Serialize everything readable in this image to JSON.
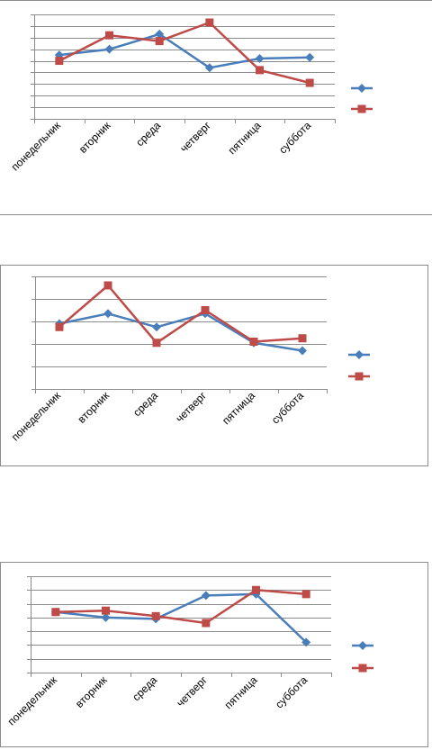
{
  "chart_data": [
    {
      "type": "line",
      "categories": [
        "понедельник",
        "вторник",
        "среда",
        "четверг",
        "пятница",
        "суббота"
      ],
      "ylim": [
        0,
        9
      ],
      "grid": true,
      "legend_placement": "right",
      "series": [
        {
          "color": "#4a7ebb",
          "marker": "diamond",
          "values": [
            5.5,
            6.0,
            7.3,
            4.4,
            5.2,
            5.3
          ]
        },
        {
          "color": "#be4b48",
          "marker": "square",
          "values": [
            5.0,
            7.2,
            6.7,
            8.3,
            4.2,
            3.1
          ]
        }
      ]
    },
    {
      "type": "line",
      "categories": [
        "понедельник",
        "вторник",
        "среда",
        "четверг",
        "пятница",
        "суббота"
      ],
      "ylim": [
        0,
        5
      ],
      "grid": true,
      "legend_placement": "right",
      "series": [
        {
          "color": "#4a7ebb",
          "marker": "diamond",
          "values": [
            2.9,
            3.35,
            2.75,
            3.35,
            2.05,
            1.7
          ]
        },
        {
          "color": "#be4b48",
          "marker": "square",
          "values": [
            2.75,
            4.6,
            2.05,
            3.5,
            2.1,
            2.25
          ]
        }
      ]
    },
    {
      "type": "line",
      "categories": [
        "понедельник",
        "вторник",
        "среда",
        "четверг",
        "пятница",
        "суббота"
      ],
      "ylim": [
        0,
        7
      ],
      "grid": true,
      "legend_placement": "right",
      "series": [
        {
          "color": "#4a7ebb",
          "marker": "diamond",
          "values": [
            4.4,
            4.0,
            3.9,
            5.6,
            5.7,
            2.2
          ]
        },
        {
          "color": "#be4b48",
          "marker": "square",
          "values": [
            4.4,
            4.5,
            4.1,
            3.6,
            6.0,
            5.7
          ]
        }
      ]
    }
  ]
}
